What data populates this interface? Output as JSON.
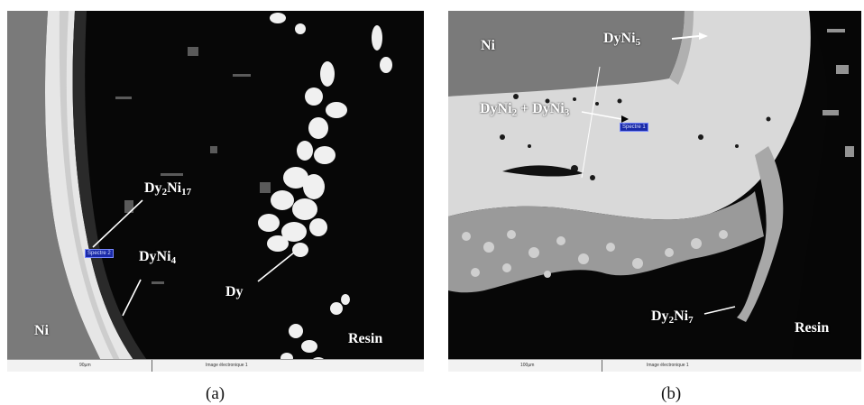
{
  "panels": [
    {
      "caption": "(a)",
      "labels": {
        "dy2ni17": "Dy₂Ni₁₇",
        "dyni4": "DyNi₄",
        "dy": "Dy",
        "ni": "Ni",
        "resin": "Resin"
      },
      "spectrum_tag": "Spectre 2",
      "scale_text": "90µm",
      "image_text": "Image électronique 1"
    },
    {
      "caption": "(b)",
      "labels": {
        "ni": "Ni",
        "dyni5": "DyNi₅",
        "dyni2_dyni3": "DyNi₂ + DyNi₃",
        "dy2ni7": "Dy₂Ni₇",
        "resin": "Resin"
      },
      "spectrum_tag": "Spectre 1",
      "scale_text": "100µm",
      "image_text": "Image électronique 1"
    }
  ],
  "colors": {
    "background_dark": "#070707",
    "nickel_gray": "#7a7a7a",
    "phase_light": "#d9d9d9",
    "phase_bright": "#f0f0f0"
  }
}
